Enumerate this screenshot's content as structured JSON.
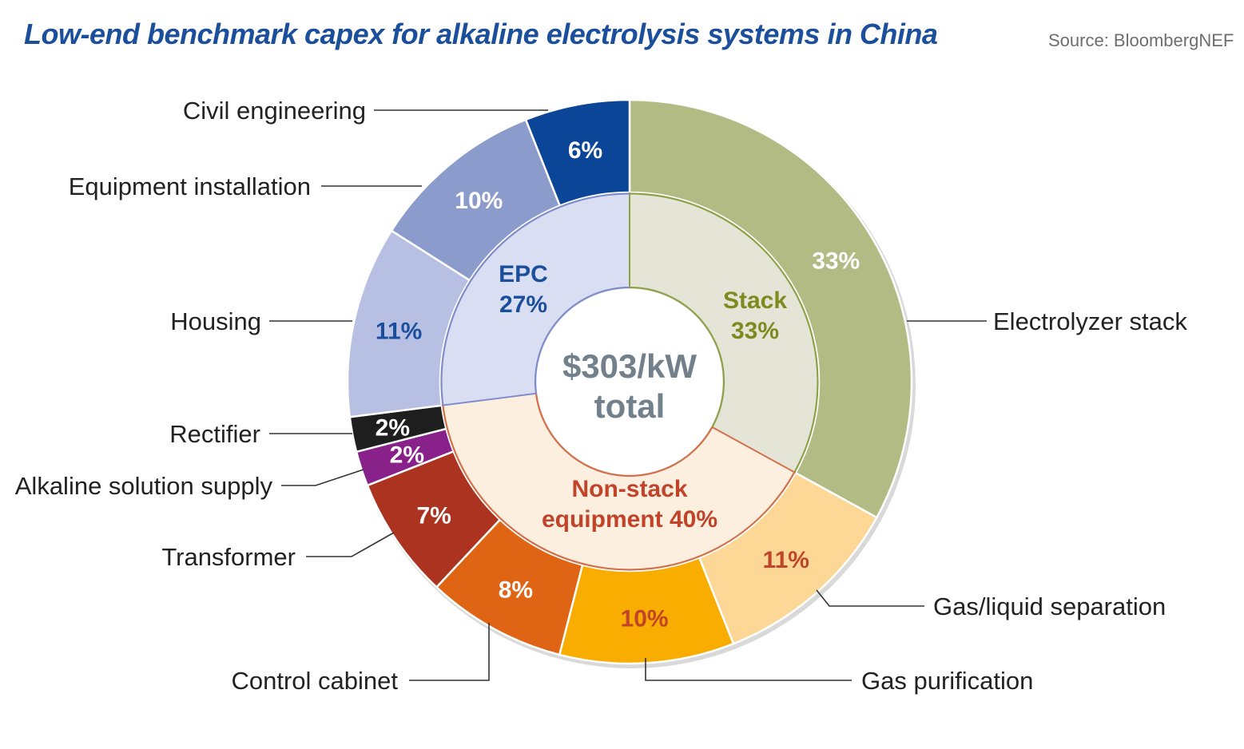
{
  "chart_data": {
    "type": "pie",
    "title": "Low-end benchmark capex for alkaline electrolysis systems in China",
    "source": "Source: BloombergNEF",
    "center_label": [
      "$303/kW",
      "total"
    ],
    "total": "$303/kW",
    "outer_ring": [
      {
        "name": "Electrolyzer stack",
        "value": 33,
        "label": "33%",
        "color": "#b2bb83",
        "text_color": "#ffffff"
      },
      {
        "name": "Gas/liquid separation",
        "value": 11,
        "label": "11%",
        "color": "#fdd795",
        "text_color": "#c0432a"
      },
      {
        "name": "Gas purification",
        "value": 10,
        "label": "10%",
        "color": "#f8ad00",
        "text_color": "#c0432a"
      },
      {
        "name": "Control cabinet",
        "value": 8,
        "label": "8%",
        "color": "#df6413",
        "text_color": "#ffffff"
      },
      {
        "name": "Transformer",
        "value": 7,
        "label": "7%",
        "color": "#ac3320",
        "text_color": "#ffffff"
      },
      {
        "name": "Alkaline solution supply",
        "value": 2,
        "label": "2%",
        "color": "#88218a",
        "text_color": "#ffffff"
      },
      {
        "name": "Rectifier",
        "value": 2,
        "label": "2%",
        "color": "#1e1e1e",
        "text_color": "#ffffff"
      },
      {
        "name": "Housing",
        "value": 11,
        "label": "11%",
        "color": "#b7bfe3",
        "text_color": "#1b4f9c"
      },
      {
        "name": "Equipment installation",
        "value": 10,
        "label": "10%",
        "color": "#8b9ccc",
        "text_color": "#ffffff"
      },
      {
        "name": "Civil engineering",
        "value": 6,
        "label": "6%",
        "color": "#0a4597",
        "text_color": "#ffffff"
      }
    ],
    "inner_ring": [
      {
        "name": "Stack",
        "value": 33,
        "label_lines": [
          "Stack",
          "33%"
        ],
        "color": "#e5e5d7",
        "stroke": "#8ea149",
        "text_color": "#7b8b20"
      },
      {
        "name": "Non-stack equipment",
        "value": 40,
        "label_lines": [
          "Non-stack",
          "equipment 40%"
        ],
        "color": "#fdefdf",
        "stroke": "#d2704a",
        "text_color": "#c0432a"
      },
      {
        "name": "EPC",
        "value": 27,
        "label_lines": [
          "EPC",
          "27%"
        ],
        "color": "#dadef2",
        "stroke": "#7f8cc9",
        "text_color": "#1b4f9c"
      }
    ]
  }
}
